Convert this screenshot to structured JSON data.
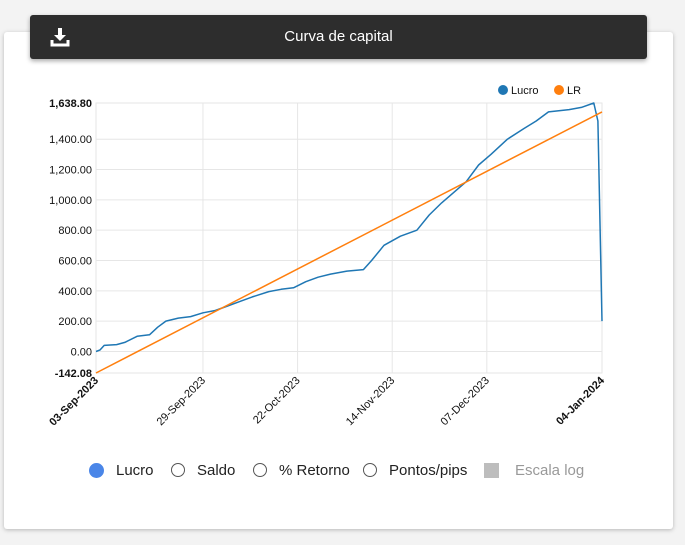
{
  "header": {
    "title": "Curva de capital",
    "download_icon": "download-icon"
  },
  "controls": {
    "options": [
      {
        "label": "Lucro",
        "selected": true
      },
      {
        "label": "Saldo",
        "selected": false
      },
      {
        "label": "% Retorno",
        "selected": false
      },
      {
        "label": "Pontos/pips",
        "selected": false
      }
    ],
    "log_scale_label": "Escala log",
    "log_scale_enabled": false
  },
  "chart_data": {
    "type": "line",
    "legend_position": "top-right",
    "grid": true,
    "ylim": [
      -142.08,
      1638.8
    ],
    "y_ticks": [
      "1,638.80",
      "1,400.00",
      "1,200.00",
      "1,000.00",
      "800.00",
      "600.00",
      "400.00",
      "200.00",
      "0.00",
      "-142.08"
    ],
    "y_tick_values": [
      1638.8,
      1400,
      1200,
      1000,
      800,
      600,
      400,
      200,
      0,
      -142.08
    ],
    "x_range": [
      "2023-09-03",
      "2024-01-04"
    ],
    "x_ticks": [
      {
        "label": "03-Sep-2023",
        "date": "2023-09-03",
        "bold": true
      },
      {
        "label": "29-Sep-2023",
        "date": "2023-09-29",
        "bold": false
      },
      {
        "label": "22-Oct-2023",
        "date": "2023-10-22",
        "bold": false
      },
      {
        "label": "14-Nov-2023",
        "date": "2023-11-14",
        "bold": false
      },
      {
        "label": "07-Dec-2023",
        "date": "2023-12-07",
        "bold": false
      },
      {
        "label": "04-Jan-2024",
        "date": "2024-01-04",
        "bold": true
      }
    ],
    "series": [
      {
        "name": "Lucro",
        "color": "#1f77b4",
        "points": [
          [
            "2023-09-03",
            0
          ],
          [
            "2023-09-04",
            10
          ],
          [
            "2023-09-05",
            40
          ],
          [
            "2023-09-08",
            45
          ],
          [
            "2023-09-10",
            60
          ],
          [
            "2023-09-13",
            100
          ],
          [
            "2023-09-16",
            110
          ],
          [
            "2023-09-18",
            160
          ],
          [
            "2023-09-20",
            200
          ],
          [
            "2023-09-23",
            220
          ],
          [
            "2023-09-26",
            230
          ],
          [
            "2023-09-29",
            255
          ],
          [
            "2023-10-02",
            270
          ],
          [
            "2023-10-05",
            300
          ],
          [
            "2023-10-08",
            330
          ],
          [
            "2023-10-11",
            360
          ],
          [
            "2023-10-15",
            395
          ],
          [
            "2023-10-18",
            410
          ],
          [
            "2023-10-21",
            420
          ],
          [
            "2023-10-24",
            460
          ],
          [
            "2023-10-27",
            490
          ],
          [
            "2023-10-30",
            510
          ],
          [
            "2023-11-03",
            530
          ],
          [
            "2023-11-07",
            540
          ],
          [
            "2023-11-09",
            600
          ],
          [
            "2023-11-12",
            700
          ],
          [
            "2023-11-16",
            760
          ],
          [
            "2023-11-20",
            800
          ],
          [
            "2023-11-23",
            900
          ],
          [
            "2023-11-26",
            980
          ],
          [
            "2023-11-29",
            1050
          ],
          [
            "2023-12-02",
            1120
          ],
          [
            "2023-12-05",
            1230
          ],
          [
            "2023-12-08",
            1300
          ],
          [
            "2023-12-12",
            1400
          ],
          [
            "2023-12-16",
            1470
          ],
          [
            "2023-12-19",
            1520
          ],
          [
            "2023-12-22",
            1580
          ],
          [
            "2023-12-27",
            1595
          ],
          [
            "2023-12-30",
            1610
          ],
          [
            "2024-01-02",
            1638.8
          ],
          [
            "2024-01-03",
            1520
          ],
          [
            "2024-01-04",
            200
          ]
        ]
      },
      {
        "name": "LR",
        "color": "#ff7f0e",
        "points": [
          [
            "2023-09-03",
            -142.08
          ],
          [
            "2024-01-04",
            1580
          ]
        ]
      }
    ]
  }
}
